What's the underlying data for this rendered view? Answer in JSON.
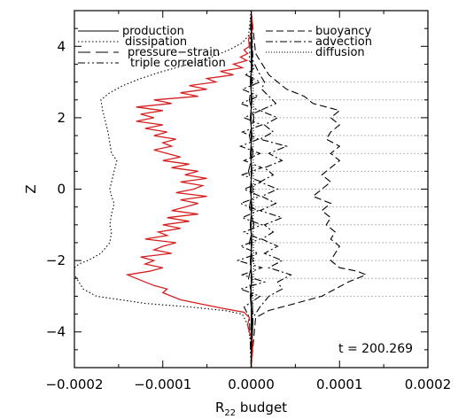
{
  "chart_data": {
    "type": "line",
    "title": "",
    "xlabel": "R",
    "xlabel_sub": "22",
    "xlabel_suffix": " budget",
    "ylabel": "Z",
    "xlim": [
      -0.0002,
      0.0002
    ],
    "ylim": [
      -5,
      5
    ],
    "xticks": [
      -0.0002,
      -0.0001,
      0.0,
      0.0001,
      0.0002
    ],
    "xtick_labels": [
      "−0.0002",
      "−0.0001",
      "0.0000",
      "0.0001",
      "0.0002"
    ],
    "yticks": [
      -4,
      -2,
      0,
      2,
      4
    ],
    "ytick_labels": [
      "−4",
      "−2",
      "0",
      "2",
      "4"
    ],
    "hlines": [
      -3,
      -2.5,
      -2,
      -1.5,
      -1,
      -0.5,
      0,
      0.5,
      1,
      1.5,
      2,
      2.5,
      3
    ],
    "annotation": "t = 200.269",
    "legend_left": [
      "production",
      "dissipation",
      "pressure−strain",
      "triple correlation"
    ],
    "legend_right": [
      "buoyancy",
      "advection",
      "diffusion"
    ],
    "series": [
      {
        "name": "dissipation",
        "style": "dotted",
        "color": "#000000",
        "y": [
          -5,
          -4.2,
          -3.8,
          -3.5,
          -3.4,
          -3.3,
          -3.2,
          -3.0,
          -2.8,
          -2.6,
          -2.4,
          -2.2,
          -2.1,
          -2.0,
          -1.8,
          -1.5,
          -1.2,
          -1.0,
          -0.7,
          -0.4,
          -0.2,
          0.0,
          0.2,
          0.5,
          0.8,
          1.0,
          1.3,
          1.6,
          1.9,
          2.2,
          2.5,
          2.7,
          2.9,
          3.1,
          3.3,
          3.5,
          3.7,
          3.9,
          4.1,
          4.3,
          5
        ],
        "x": [
          0,
          -1e-06,
          -4e-06,
          -1e-05,
          -3e-05,
          -7e-05,
          -0.00012,
          -0.000175,
          -0.00019,
          -0.000195,
          -0.0002,
          -0.0002,
          -0.000195,
          -0.000185,
          -0.00017,
          -0.00016,
          -0.000158,
          -0.00016,
          -0.000158,
          -0.000155,
          -0.000158,
          -0.00016,
          -0.000158,
          -0.000155,
          -0.000152,
          -0.000158,
          -0.00016,
          -0.000162,
          -0.000165,
          -0.000168,
          -0.00017,
          -0.00016,
          -0.000145,
          -0.000125,
          -0.0001,
          -7e-05,
          -4.5e-05,
          -2.5e-05,
          -1e-05,
          -3e-06,
          0
        ]
      },
      {
        "name": "buoyancy",
        "style": "dashed",
        "color": "#000000",
        "y": [
          -5,
          -3.6,
          -3.4,
          -3.2,
          -3.0,
          -2.8,
          -2.6,
          -2.4,
          -2.3,
          -2.2,
          -2.0,
          -1.8,
          -1.6,
          -1.4,
          -1.2,
          -1.0,
          -0.8,
          -0.6,
          -0.4,
          -0.2,
          0.0,
          0.2,
          0.4,
          0.6,
          0.8,
          1.0,
          1.2,
          1.4,
          1.6,
          1.8,
          2.0,
          2.2,
          2.4,
          2.6,
          2.8,
          3.0,
          3.2,
          3.4,
          3.6,
          3.8,
          5
        ],
        "x": [
          0,
          5e-06,
          2e-05,
          5e-05,
          8e-05,
          9.5e-05,
          0.00011,
          0.00013,
          0.00012,
          0.0001,
          9e-05,
          9.5e-05,
          0.0001,
          9e-05,
          9.5e-05,
          8.5e-05,
          9e-05,
          8e-05,
          9e-05,
          7e-05,
          8e-05,
          9e-05,
          8e-05,
          9e-05,
          0.0001,
          9e-05,
          0.0001,
          8.5e-05,
          9e-05,
          0.0001,
          9e-05,
          0.0001,
          7e-05,
          6e-05,
          4e-05,
          3e-05,
          2e-05,
          1.5e-05,
          1e-05,
          5e-06,
          0
        ]
      },
      {
        "name": "pressure−strain",
        "style": "longdash",
        "color": "#000000",
        "y": [
          -5,
          -3.6,
          -3.0,
          -2.5,
          -2.0,
          -1.5,
          -1.0,
          -0.5,
          0.0,
          0.5,
          1.0,
          1.5,
          2.0,
          2.5,
          3.0,
          3.6,
          5
        ],
        "x": [
          0,
          2e-06,
          1e-06,
          -3e-06,
          2e-06,
          -2e-06,
          3e-06,
          -2e-06,
          2e-06,
          -3e-06,
          2e-06,
          -2e-06,
          3e-06,
          -2e-06,
          1e-06,
          1e-06,
          0
        ]
      },
      {
        "name": "advection",
        "style": "dashdot",
        "color": "#000000",
        "y": [
          -5,
          -3.6,
          -3.3,
          -3.0,
          -2.8,
          -2.6,
          -2.4,
          -2.2,
          -2.0,
          -1.8,
          -1.6,
          -1.4,
          -1.2,
          -1.0,
          -0.8,
          -0.6,
          -0.4,
          -0.2,
          0.0,
          0.2,
          0.4,
          0.6,
          0.8,
          1.0,
          1.2,
          1.4,
          1.6,
          1.8,
          2.0,
          2.2,
          2.4,
          2.6,
          2.8,
          3.0,
          3.2,
          3.4,
          3.6,
          5
        ],
        "x": [
          0,
          2e-06,
          1e-05,
          2e-05,
          3.5e-05,
          3e-05,
          4.5e-05,
          2e-05,
          3.5e-05,
          1.5e-05,
          3e-05,
          1.2e-05,
          2.5e-05,
          1.5e-05,
          3.5e-05,
          1e-05,
          2.8e-05,
          1.2e-05,
          3e-05,
          1e-05,
          2.5e-05,
          1.5e-05,
          3.5e-05,
          2e-05,
          4e-05,
          1e-05,
          2.5e-05,
          1.5e-05,
          3e-05,
          1e-05,
          2.8e-05,
          2e-05,
          1.2e-05,
          1.5e-05,
          1e-05,
          6e-06,
          2e-06,
          0
        ]
      },
      {
        "name": "triple correlation",
        "style": "dashdotdot",
        "color": "#000000",
        "y": [
          -5,
          -3.6,
          -3.3,
          -3.0,
          -2.8,
          -2.6,
          -2.4,
          -2.2,
          -2.0,
          -1.8,
          -1.6,
          -1.4,
          -1.2,
          -1.0,
          -0.8,
          -0.6,
          -0.4,
          -0.2,
          0.0,
          0.2,
          0.4,
          0.6,
          0.8,
          1.0,
          1.2,
          1.4,
          1.6,
          1.8,
          2.0,
          2.2,
          2.4,
          2.6,
          2.8,
          3.0,
          3.2,
          3.4,
          3.6,
          5
        ],
        "x": [
          0,
          -2e-06,
          -8e-06,
          1e-05,
          -1.2e-05,
          1.5e-05,
          -1e-05,
          1.2e-05,
          -1.5e-05,
          8e-06,
          -1.2e-05,
          1e-05,
          -8e-06,
          1.2e-05,
          -1e-05,
          8e-06,
          -1.2e-05,
          1e-05,
          -8e-06,
          1.2e-05,
          -1e-05,
          1.2e-05,
          -8e-06,
          1e-05,
          -1.2e-05,
          8e-06,
          -1e-05,
          1.2e-05,
          -8e-06,
          1e-05,
          -1.2e-05,
          8e-06,
          -1e-05,
          1e-05,
          -6e-06,
          4e-06,
          -2e-06,
          0
        ]
      },
      {
        "name": "production",
        "style": "solid",
        "color": "#000000",
        "y": [
          -5,
          -3.6,
          -3.0,
          -2.5,
          -2.0,
          -1.5,
          -1.0,
          -0.5,
          0.0,
          0.5,
          1.0,
          1.5,
          2.0,
          2.5,
          3.0,
          3.6,
          5
        ],
        "x": [
          0,
          1e-06,
          -1e-06,
          1e-06,
          -1e-06,
          1e-06,
          -1e-06,
          1e-06,
          -1e-06,
          1e-06,
          -1e-06,
          1e-06,
          -1e-06,
          1e-06,
          -1e-06,
          1e-06,
          0
        ]
      },
      {
        "name": "diffusion",
        "style": "finedot",
        "color": "#000000",
        "y": [
          -5,
          -3.6,
          -3.0,
          -2.0,
          -1.0,
          0.0,
          1.0,
          2.0,
          3.0,
          3.6,
          5
        ],
        "x": [
          0,
          1e-06,
          2e-06,
          3e-06,
          2e-06,
          3e-06,
          2e-06,
          3e-06,
          2e-06,
          1e-06,
          0
        ]
      },
      {
        "name": "sum",
        "style": "solid",
        "color": "#d42020",
        "y": [
          -5,
          -4.3,
          -4.0,
          -3.8,
          -3.6,
          -3.45,
          -3.35,
          -3.2,
          -3.1,
          -3.0,
          -2.9,
          -2.8,
          -2.7,
          -2.6,
          -2.5,
          -2.4,
          -2.3,
          -2.2,
          -2.1,
          -2.0,
          -1.9,
          -1.8,
          -1.7,
          -1.6,
          -1.5,
          -1.4,
          -1.3,
          -1.2,
          -1.1,
          -1.0,
          -0.9,
          -0.8,
          -0.7,
          -0.6,
          -0.5,
          -0.4,
          -0.3,
          -0.2,
          -0.1,
          0.0,
          0.1,
          0.2,
          0.3,
          0.4,
          0.5,
          0.6,
          0.7,
          0.8,
          0.9,
          1.0,
          1.1,
          1.2,
          1.3,
          1.4,
          1.5,
          1.6,
          1.7,
          1.8,
          1.9,
          2.0,
          2.1,
          2.2,
          2.3,
          2.4,
          2.5,
          2.6,
          2.7,
          2.8,
          2.9,
          3.0,
          3.1,
          3.2,
          3.3,
          3.4,
          3.5,
          3.6,
          3.7,
          3.8,
          3.9,
          4.0,
          4.2,
          4.5,
          5
        ],
        "x": [
          0,
          2e-06,
          -2e-06,
          -4e-06,
          -2e-06,
          -8e-06,
          -3e-05,
          -6e-05,
          -8e-05,
          -9e-05,
          -0.0001,
          -9.5e-05,
          -0.00011,
          -0.00012,
          -0.00013,
          -0.00014,
          -0.000115,
          -0.0001,
          -0.00012,
          -0.00011,
          -0.000125,
          -9e-05,
          -0.00011,
          -0.0001,
          -8.5e-05,
          -0.00012,
          -9.5e-05,
          -0.000105,
          -8e-05,
          -0.0001,
          -7e-05,
          -9.5e-05,
          -6e-05,
          -9e-05,
          -7.5e-05,
          -6e-05,
          -8e-05,
          -5e-05,
          -8.5e-05,
          -6.5e-05,
          -5.5e-05,
          -8e-05,
          -5e-05,
          -7.5e-05,
          -6e-05,
          -9e-05,
          -7e-05,
          -0.0001,
          -8e-05,
          -9.5e-05,
          -0.00011,
          -9e-05,
          -0.0001,
          -8.5e-05,
          -0.00011,
          -9.5e-05,
          -0.00012,
          -0.0001,
          -0.00013,
          -0.00011,
          -0.000125,
          -0.0001,
          -0.00013,
          -9e-05,
          -0.00011,
          -6e-05,
          -8e-05,
          -5e-05,
          -7e-05,
          -4e-05,
          -5e-05,
          -2e-05,
          -3.5e-05,
          -1e-05,
          -2e-05,
          -5e-06,
          -1.2e-05,
          -4e-06,
          -8e-06,
          -2e-06,
          -3e-06,
          2e-06,
          0
        ]
      }
    ]
  }
}
